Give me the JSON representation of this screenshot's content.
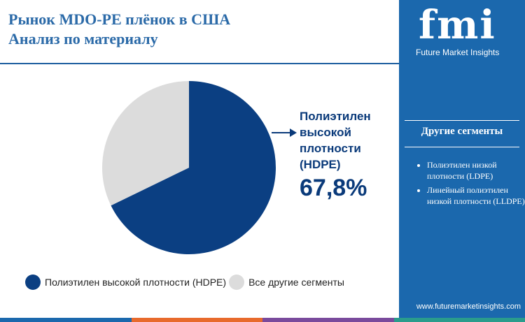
{
  "header": {
    "title_line1": "Рынок MDO-PE плёнок в США",
    "title_line2": "Анализ по материалу"
  },
  "chart_data": {
    "type": "pie",
    "slices": [
      {
        "name": "Полиэтилен высокой плотности (HDPE)",
        "value": 67.8,
        "color": "#0b3f82"
      },
      {
        "name": "Все другие сегменты",
        "value": 32.2,
        "color": "#dcdcdc"
      }
    ],
    "start_angle_deg": 0,
    "direction": "clockwise",
    "legend_position": "bottom"
  },
  "callout": {
    "label": "Полиэтилен высокой плотности (HDPE)",
    "value": "67,8%"
  },
  "legend": [
    {
      "label": "Полиэтилен высокой плотности (HDPE)",
      "color": "#0b3f82"
    },
    {
      "label": "Все другие сегменты",
      "color": "#dcdcdc"
    }
  ],
  "sidebar": {
    "logo": "fmi",
    "logo_sub": "Future Market Insights",
    "heading": "Другие сегменты",
    "items": [
      "Полиэтилен низкой плотности (LDPE)",
      "Линейный полиэтилен низкой плотности (LLDPE)"
    ],
    "url": "www.futuremarketinsights.com"
  },
  "colors": {
    "accent": "#1b68ad",
    "title": "#2b6aa8",
    "dark_navy": "#0a3a7a",
    "bar": [
      "#1b68ad",
      "#e86a2c",
      "#7a4a9c",
      "#2a9c8c"
    ]
  }
}
